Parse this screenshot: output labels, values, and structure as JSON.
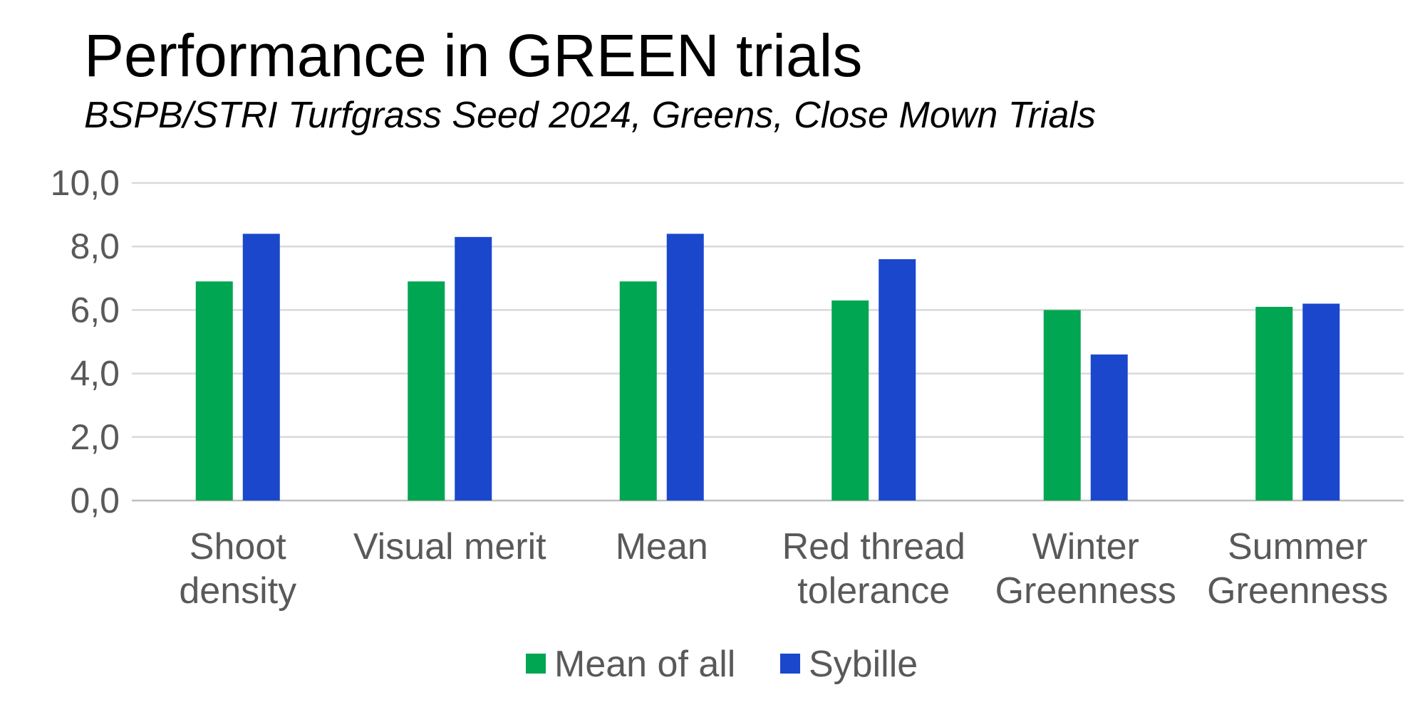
{
  "chart_data": {
    "type": "bar",
    "title": "Performance in GREEN trials",
    "subtitle": "BSPB/STRI Turfgrass Seed 2024, Greens, Close Mown Trials",
    "categories": [
      [
        "Shoot",
        "density"
      ],
      [
        "Visual merit"
      ],
      [
        "Mean"
      ],
      [
        "Red thread",
        "tolerance"
      ],
      [
        "Winter",
        "Greenness"
      ],
      [
        "Summer",
        "Greenness"
      ]
    ],
    "series": [
      {
        "name": "Mean of all",
        "color": "#00A651",
        "values": [
          6.9,
          6.9,
          6.9,
          6.3,
          6.0,
          6.1
        ]
      },
      {
        "name": "Sybille",
        "color": "#1A47CC",
        "values": [
          8.4,
          8.3,
          8.4,
          7.6,
          4.6,
          6.2
        ]
      }
    ],
    "yticks": [
      "0,0",
      "2,0",
      "4,0",
      "6,0",
      "8,0",
      "10,0"
    ],
    "ylim": [
      0,
      10
    ],
    "grid": true,
    "legend_position": "bottom"
  }
}
